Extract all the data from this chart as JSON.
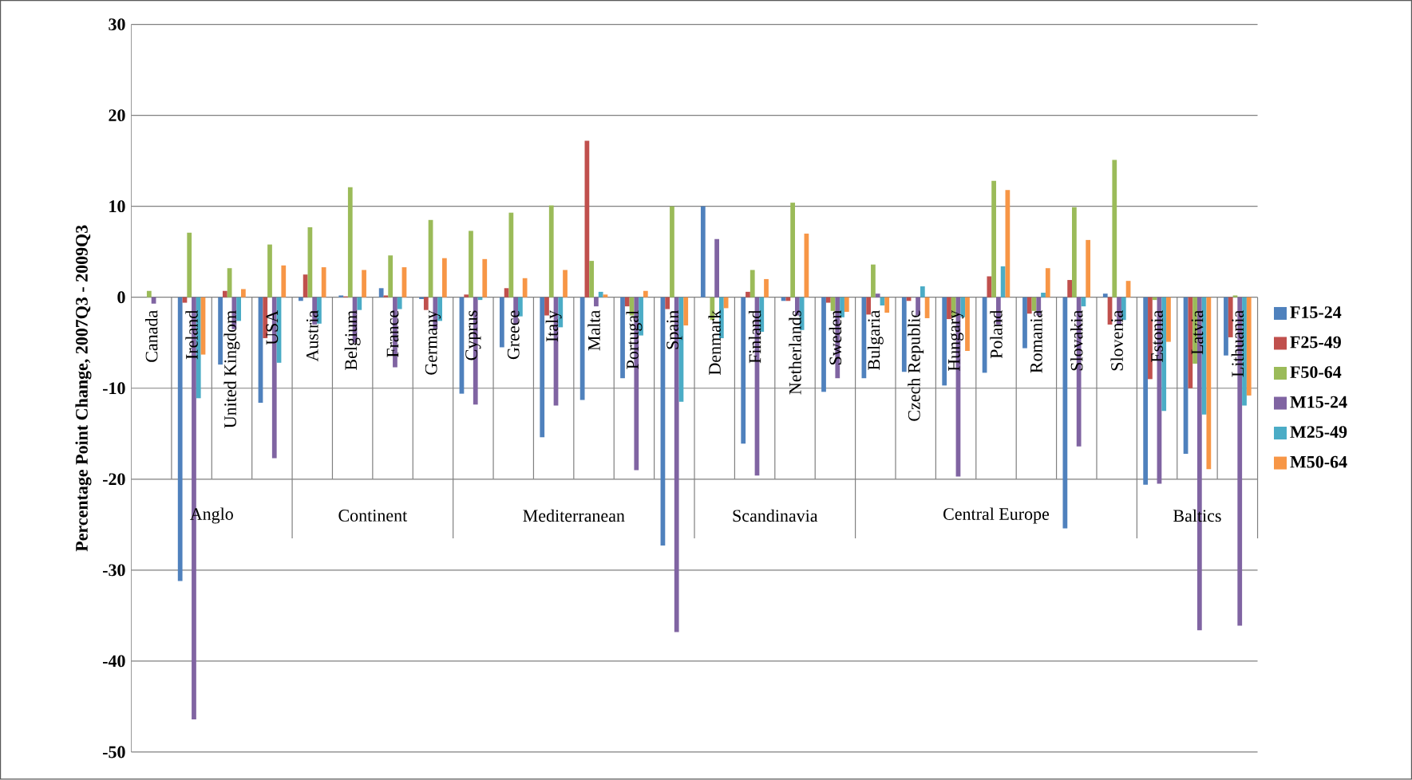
{
  "chart_data": {
    "type": "bar",
    "ylabel": "Percentage Point Change, 2007Q3 - 2009Q3",
    "categories": [
      "Canada",
      "Ireland",
      "United Kingdom",
      "USA",
      "Austria",
      "Belgium",
      "France",
      "Germany",
      "Cyprus",
      "Greece",
      "Italy",
      "Malta",
      "Portugal",
      "Spain",
      "Denmark",
      "Finland",
      "Netherlands",
      "Sweden",
      "Bulgaria",
      "Czech Republic",
      "Hungary",
      "Poland",
      "Romania",
      "Slovakia",
      "Slovenia",
      "Estonia",
      "Latvia",
      "Lithuania"
    ],
    "series": [
      {
        "name": "F15-24",
        "color": "#4f81bd",
        "values": [
          0,
          -31.2,
          -7.4,
          -11.6,
          -0.4,
          0.2,
          1.0,
          -0.2,
          -10.6,
          -5.5,
          -15.4,
          -11.3,
          -8.9,
          -27.3,
          10.0,
          -16.1,
          -0.4,
          -10.4,
          -8.9,
          -8.2,
          -9.7,
          -8.3,
          -5.6,
          -25.4,
          0.4,
          -20.6,
          -17.2,
          -6.4
        ]
      },
      {
        "name": "F25-49",
        "color": "#c0504d",
        "values": [
          0,
          -0.6,
          0.7,
          -4.5,
          2.5,
          0.1,
          0.2,
          -1.4,
          0.3,
          1.0,
          -2.0,
          17.2,
          -1.0,
          -1.3,
          0,
          0.6,
          -0.4,
          -0.6,
          -1.9,
          -0.4,
          -2.4,
          2.3,
          -1.8,
          1.9,
          -3.0,
          -9.0,
          -10.0,
          -4.4
        ]
      },
      {
        "name": "F50-64",
        "color": "#9bbb59",
        "values": [
          0.7,
          7.1,
          3.2,
          5.8,
          7.7,
          12.1,
          4.6,
          8.5,
          7.3,
          9.3,
          10.1,
          4.0,
          -2.0,
          10.0,
          -2.5,
          3.0,
          10.4,
          -1.5,
          3.6,
          0,
          -2.2,
          12.8,
          -1.5,
          9.9,
          15.1,
          -0.3,
          -7.3,
          0.2
        ]
      },
      {
        "name": "M15-24",
        "color": "#8064a2",
        "values": [
          -0.7,
          -46.4,
          -3.5,
          -17.7,
          -3.0,
          -5.0,
          -7.7,
          -3.5,
          -11.8,
          -3.0,
          -11.9,
          -1.0,
          -19.0,
          -36.8,
          6.4,
          -19.6,
          -2.0,
          -8.9,
          0.4,
          -2.0,
          -19.7,
          -3.0,
          -2.0,
          -16.4,
          -3.0,
          -20.5,
          -36.6,
          -36.1
        ]
      },
      {
        "name": "M25-49",
        "color": "#4bacc6",
        "values": [
          0,
          -11.1,
          -2.6,
          -7.2,
          -2.9,
          -1.4,
          -1.3,
          -2.6,
          -0.3,
          -2.1,
          -3.3,
          0.6,
          -4.2,
          -11.5,
          -4.5,
          -3.8,
          -3.6,
          -2.2,
          -0.9,
          1.2,
          -2.2,
          3.4,
          0.5,
          -1.0,
          -2.5,
          -12.5,
          -12.9,
          -11.9
        ]
      },
      {
        "name": "M50-64",
        "color": "#f79646",
        "values": [
          0,
          -6.3,
          0.9,
          3.5,
          3.3,
          3.0,
          3.3,
          4.3,
          4.2,
          2.1,
          3.0,
          0.3,
          0.7,
          -3.1,
          -1.2,
          2.0,
          7.0,
          -1.6,
          -1.7,
          -2.3,
          -5.9,
          11.8,
          3.2,
          6.3,
          1.8,
          -4.9,
          -18.9,
          -10.8
        ]
      }
    ],
    "ylim": [
      -50,
      30
    ],
    "yticks": [
      -50,
      -40,
      -30,
      -20,
      -10,
      0,
      10,
      20,
      30
    ],
    "annotations": [
      "Anglo",
      "Continent",
      "Mediterranean",
      "Scandinavia",
      "Central Europe",
      "Baltics"
    ],
    "grid": "y",
    "legend": "right"
  }
}
